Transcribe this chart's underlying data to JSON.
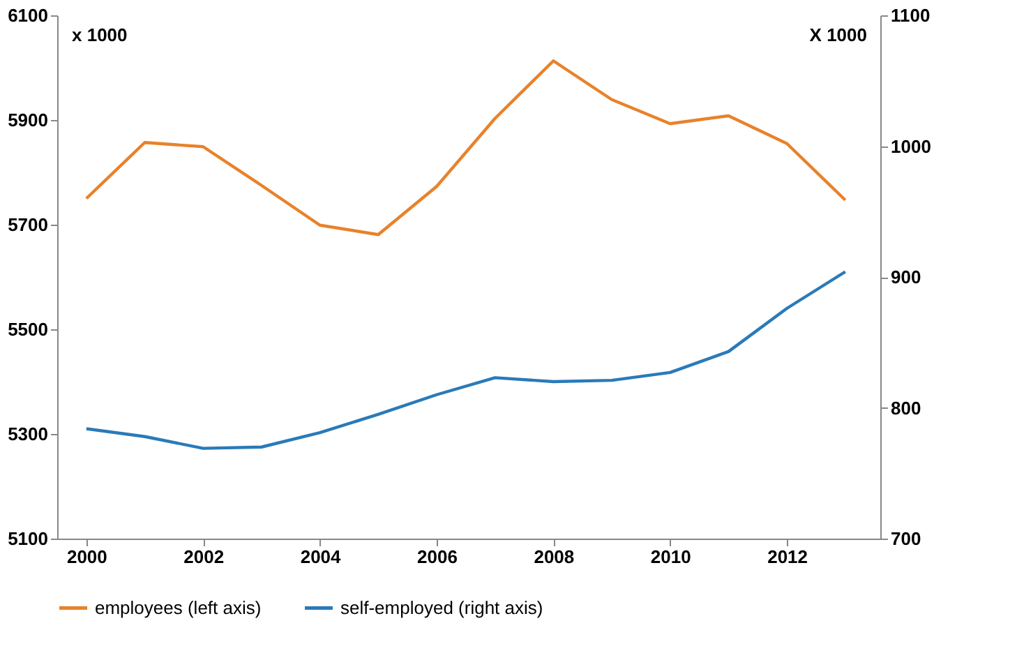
{
  "chart_data": {
    "type": "line",
    "x": [
      2000,
      2001,
      2002,
      2003,
      2004,
      2005,
      2006,
      2007,
      2008,
      2009,
      2010,
      2011,
      2012,
      2013
    ],
    "series": [
      {
        "name": "employees (left axis)",
        "color": "#e8822a",
        "values": [
          5750,
          5857,
          5849,
          5775,
          5699,
          5681,
          5773,
          5903,
          6013,
          5939,
          5893,
          5908,
          5855,
          5747
        ]
      },
      {
        "name": "self-employed (right axis)",
        "color": "#2a7ab8",
        "axis": "y2",
        "values": [
          784,
          778,
          769,
          770,
          781,
          795,
          810,
          823,
          820,
          821,
          827,
          843,
          876,
          904
        ]
      }
    ],
    "ylabel": "x 1000",
    "y2label": "X 1000",
    "xlim": [
      1999.5,
      2013.6
    ],
    "xticks": [
      2000,
      2002,
      2004,
      2006,
      2008,
      2010,
      2012
    ],
    "ylim": [
      5100,
      6100
    ],
    "yticks": [
      5100,
      5300,
      5500,
      5700,
      5900,
      6100
    ],
    "y2lim": [
      700,
      1100
    ],
    "y2ticks": [
      700,
      800,
      900,
      1000,
      1100
    ],
    "grid": false,
    "legend": "bottom",
    "marker": "none",
    "line_style": "solid"
  }
}
